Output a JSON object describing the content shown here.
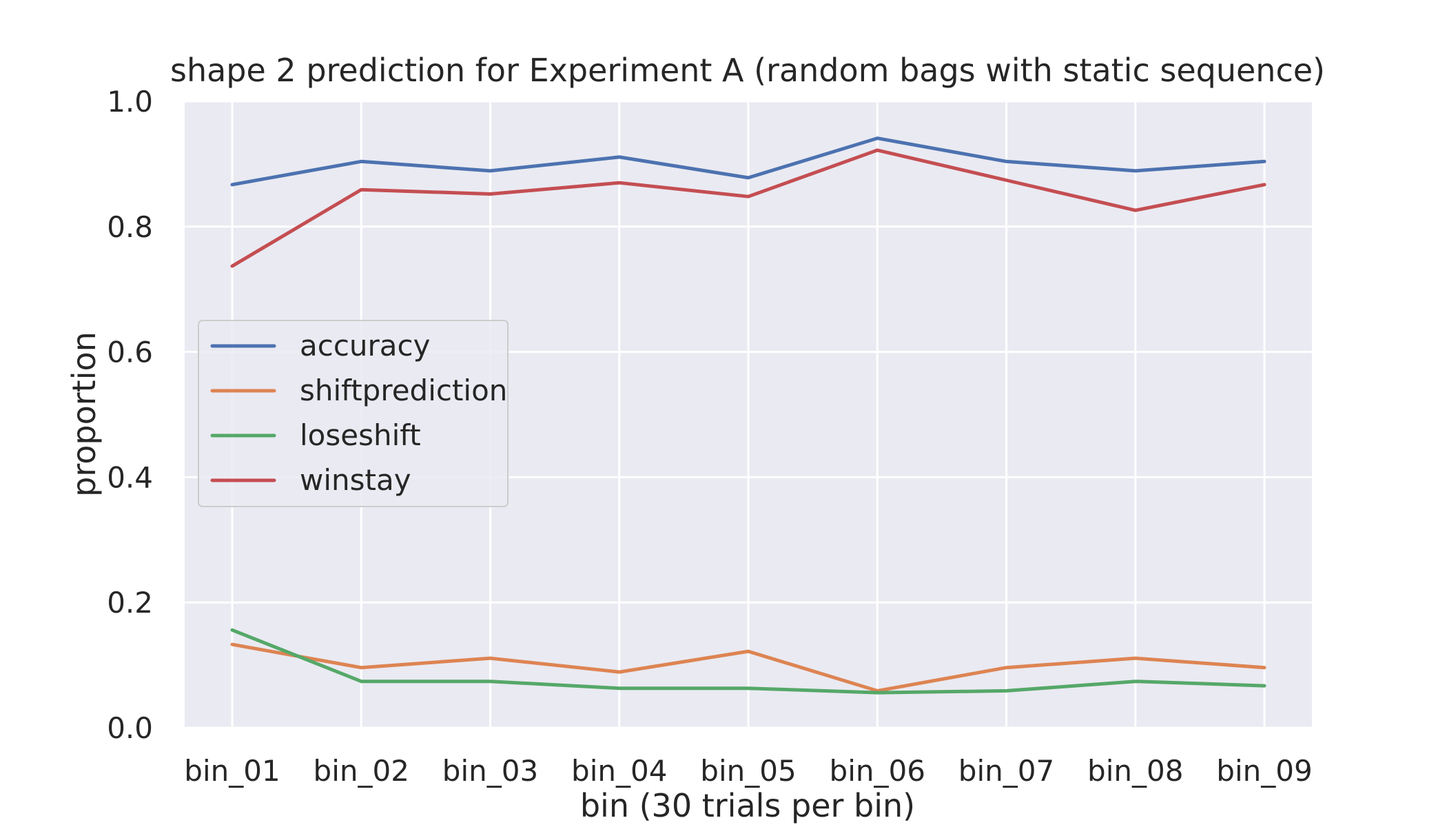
{
  "chart_data": {
    "type": "line",
    "title": "shape 2 prediction for Experiment A (random bags with static sequence)",
    "xlabel": "bin (30 trials per bin)",
    "ylabel": "proportion",
    "categories": [
      "bin_01",
      "bin_02",
      "bin_03",
      "bin_04",
      "bin_05",
      "bin_06",
      "bin_07",
      "bin_08",
      "bin_09"
    ],
    "yticks": [
      "0.0",
      "0.2",
      "0.4",
      "0.6",
      "0.8",
      "1.0"
    ],
    "ylim": [
      0,
      1
    ],
    "grid": true,
    "legend_position": "center-left",
    "series": [
      {
        "name": "accuracy",
        "color": "#4c72b0",
        "values": [
          0.867,
          0.904,
          0.889,
          0.911,
          0.878,
          0.941,
          0.904,
          0.889,
          0.904
        ]
      },
      {
        "name": "shiftprediction",
        "color": "#dd8452",
        "values": [
          0.133,
          0.096,
          0.111,
          0.089,
          0.122,
          0.059,
          0.096,
          0.111,
          0.096
        ]
      },
      {
        "name": "loseshift",
        "color": "#55a868",
        "values": [
          0.156,
          0.074,
          0.074,
          0.063,
          0.063,
          0.056,
          0.059,
          0.074,
          0.067
        ]
      },
      {
        "name": "winstay",
        "color": "#c44e52",
        "values": [
          0.737,
          0.859,
          0.852,
          0.87,
          0.848,
          0.922,
          0.874,
          0.826,
          0.867
        ]
      }
    ]
  }
}
